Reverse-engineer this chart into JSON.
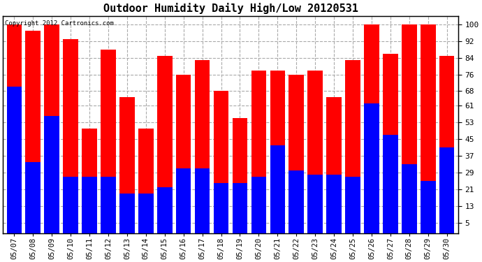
{
  "title": "Outdoor Humidity Daily High/Low 20120531",
  "copyright_text": "Copyright 2012 Cartronics.com",
  "dates": [
    "05/07",
    "05/08",
    "05/09",
    "05/10",
    "05/11",
    "05/12",
    "05/13",
    "05/14",
    "05/15",
    "05/16",
    "05/17",
    "05/18",
    "05/19",
    "05/20",
    "05/21",
    "05/22",
    "05/23",
    "05/24",
    "05/25",
    "05/26",
    "05/27",
    "05/28",
    "05/29",
    "05/30"
  ],
  "high_values": [
    100,
    97,
    100,
    93,
    50,
    88,
    65,
    50,
    85,
    76,
    83,
    68,
    55,
    78,
    78,
    76,
    78,
    65,
    83,
    100,
    86,
    100,
    100,
    85
  ],
  "low_values": [
    70,
    34,
    56,
    27,
    27,
    27,
    19,
    19,
    22,
    31,
    31,
    24,
    24,
    27,
    42,
    30,
    28,
    28,
    27,
    62,
    47,
    33,
    25,
    41
  ],
  "high_color": "#FF0000",
  "low_color": "#0000FF",
  "bg_color": "#FFFFFF",
  "plot_bg_color": "#FFFFFF",
  "grid_color": "#AAAAAA",
  "yticks": [
    5,
    13,
    21,
    29,
    37,
    45,
    53,
    61,
    68,
    76,
    84,
    92,
    100
  ],
  "ylim": [
    0,
    104
  ],
  "bar_width": 0.8
}
